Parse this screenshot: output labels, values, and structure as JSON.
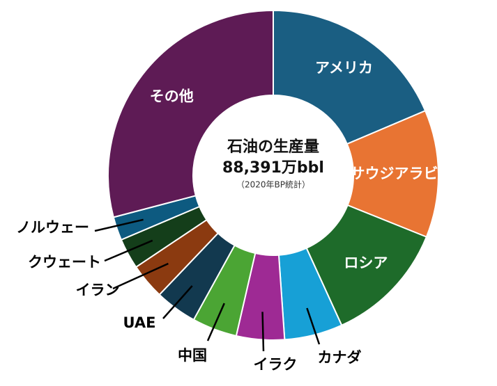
{
  "chart_data": {
    "type": "donut",
    "center_title": "石油の生産量",
    "center_value": "88,391万bbl",
    "center_note": "（2020年BP統計）",
    "categories": [
      "アメリカ",
      "サウジアラビア",
      "ロシア",
      "カナダ",
      "イラク",
      "中国",
      "UAE",
      "イラン",
      "クウェート",
      "ノルウェー",
      "その他"
    ],
    "values": [
      18.6,
      12.5,
      12.1,
      5.7,
      4.7,
      4.4,
      4.1,
      3.5,
      3.0,
      2.3,
      29.1
    ],
    "colors": [
      "#1a5e82",
      "#e87433",
      "#1e6b2a",
      "#17a0d6",
      "#9e2a94",
      "#4ba534",
      "#12394f",
      "#8b3a10",
      "#143e1a",
      "#0d5a80",
      "#5e1b55"
    ]
  }
}
